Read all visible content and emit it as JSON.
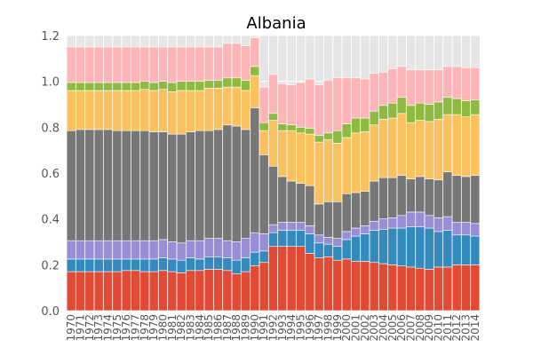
{
  "chart_data": {
    "type": "bar",
    "stacked": true,
    "title": "Albania",
    "xlabel": "",
    "ylabel": "",
    "ylim": [
      0,
      1.2
    ],
    "yticks": [
      "0.0",
      "0.2",
      "0.4",
      "0.6",
      "0.8",
      "1.0",
      "1.2"
    ],
    "grid": true,
    "legend": "none",
    "categories": [
      "1970",
      "1971",
      "1972",
      "1973",
      "1974",
      "1975",
      "1976",
      "1977",
      "1978",
      "1979",
      "1980",
      "1981",
      "1982",
      "1983",
      "1984",
      "1985",
      "1986",
      "1987",
      "1988",
      "1989",
      "1990",
      "1991",
      "1992",
      "1993",
      "1994",
      "1995",
      "1996",
      "1997",
      "1998",
      "1999",
      "2000",
      "2001",
      "2002",
      "2003",
      "2004",
      "2005",
      "2006",
      "2007",
      "2008",
      "2009",
      "2010",
      "2011",
      "2012",
      "2013",
      "2014"
    ],
    "colors": [
      "#e24a33",
      "#348abd",
      "#988ed5",
      "#777777",
      "#fbc15e",
      "#8eba42",
      "#ffb5b8"
    ],
    "series": [
      {
        "values": [
          0.17,
          0.17,
          0.17,
          0.17,
          0.17,
          0.17,
          0.175,
          0.175,
          0.17,
          0.17,
          0.175,
          0.17,
          0.165,
          0.175,
          0.175,
          0.18,
          0.18,
          0.175,
          0.16,
          0.17,
          0.195,
          0.21,
          0.28,
          0.28,
          0.28,
          0.28,
          0.25,
          0.23,
          0.235,
          0.22,
          0.225,
          0.215,
          0.215,
          0.21,
          0.205,
          0.2,
          0.195,
          0.19,
          0.185,
          0.18,
          0.19,
          0.19,
          0.2,
          0.2,
          0.2
        ]
      },
      {
        "values": [
          0.055,
          0.055,
          0.055,
          0.055,
          0.055,
          0.055,
          0.05,
          0.05,
          0.055,
          0.055,
          0.055,
          0.055,
          0.055,
          0.055,
          0.05,
          0.055,
          0.055,
          0.055,
          0.06,
          0.06,
          0.06,
          0.05,
          0.06,
          0.07,
          0.07,
          0.07,
          0.085,
          0.065,
          0.055,
          0.06,
          0.085,
          0.11,
          0.12,
          0.14,
          0.15,
          0.16,
          0.165,
          0.175,
          0.18,
          0.18,
          0.155,
          0.16,
          0.13,
          0.13,
          0.125
        ]
      },
      {
        "values": [
          0.08,
          0.08,
          0.08,
          0.08,
          0.08,
          0.08,
          0.08,
          0.08,
          0.08,
          0.08,
          0.08,
          0.075,
          0.075,
          0.075,
          0.08,
          0.08,
          0.08,
          0.075,
          0.08,
          0.085,
          0.085,
          0.075,
          0.035,
          0.035,
          0.035,
          0.035,
          0.035,
          0.035,
          0.03,
          0.035,
          0.035,
          0.035,
          0.035,
          0.04,
          0.045,
          0.045,
          0.055,
          0.065,
          0.065,
          0.055,
          0.06,
          0.06,
          0.055,
          0.055,
          0.055
        ]
      },
      {
        "values": [
          0.48,
          0.485,
          0.485,
          0.485,
          0.485,
          0.48,
          0.48,
          0.48,
          0.48,
          0.475,
          0.47,
          0.47,
          0.475,
          0.475,
          0.48,
          0.47,
          0.475,
          0.505,
          0.505,
          0.475,
          0.545,
          0.345,
          0.255,
          0.2,
          0.18,
          0.17,
          0.175,
          0.135,
          0.155,
          0.16,
          0.165,
          0.155,
          0.15,
          0.175,
          0.18,
          0.175,
          0.175,
          0.145,
          0.155,
          0.16,
          0.165,
          0.195,
          0.205,
          0.2,
          0.21
        ]
      },
      {
        "values": [
          0.175,
          0.17,
          0.17,
          0.17,
          0.17,
          0.175,
          0.175,
          0.175,
          0.18,
          0.18,
          0.185,
          0.185,
          0.19,
          0.18,
          0.175,
          0.185,
          0.18,
          0.165,
          0.17,
          0.17,
          0.14,
          0.105,
          0.2,
          0.2,
          0.22,
          0.22,
          0.225,
          0.27,
          0.27,
          0.255,
          0.245,
          0.26,
          0.26,
          0.245,
          0.255,
          0.26,
          0.27,
          0.245,
          0.245,
          0.25,
          0.265,
          0.25,
          0.265,
          0.26,
          0.265
        ]
      },
      {
        "values": [
          0.035,
          0.035,
          0.035,
          0.035,
          0.035,
          0.035,
          0.035,
          0.035,
          0.035,
          0.035,
          0.035,
          0.04,
          0.04,
          0.04,
          0.04,
          0.035,
          0.035,
          0.04,
          0.04,
          0.045,
          0.04,
          0.035,
          0.03,
          0.03,
          0.025,
          0.025,
          0.025,
          0.03,
          0.03,
          0.055,
          0.06,
          0.065,
          0.06,
          0.06,
          0.06,
          0.065,
          0.07,
          0.075,
          0.075,
          0.075,
          0.075,
          0.075,
          0.07,
          0.07,
          0.065
        ]
      },
      {
        "values": [
          0.155,
          0.155,
          0.155,
          0.155,
          0.155,
          0.155,
          0.155,
          0.155,
          0.15,
          0.155,
          0.15,
          0.155,
          0.15,
          0.15,
          0.15,
          0.145,
          0.145,
          0.15,
          0.15,
          0.15,
          0.125,
          0.155,
          0.17,
          0.175,
          0.175,
          0.195,
          0.215,
          0.22,
          0.23,
          0.23,
          0.2,
          0.175,
          0.17,
          0.165,
          0.145,
          0.15,
          0.135,
          0.155,
          0.145,
          0.15,
          0.14,
          0.135,
          0.14,
          0.145,
          0.14
        ]
      }
    ]
  }
}
